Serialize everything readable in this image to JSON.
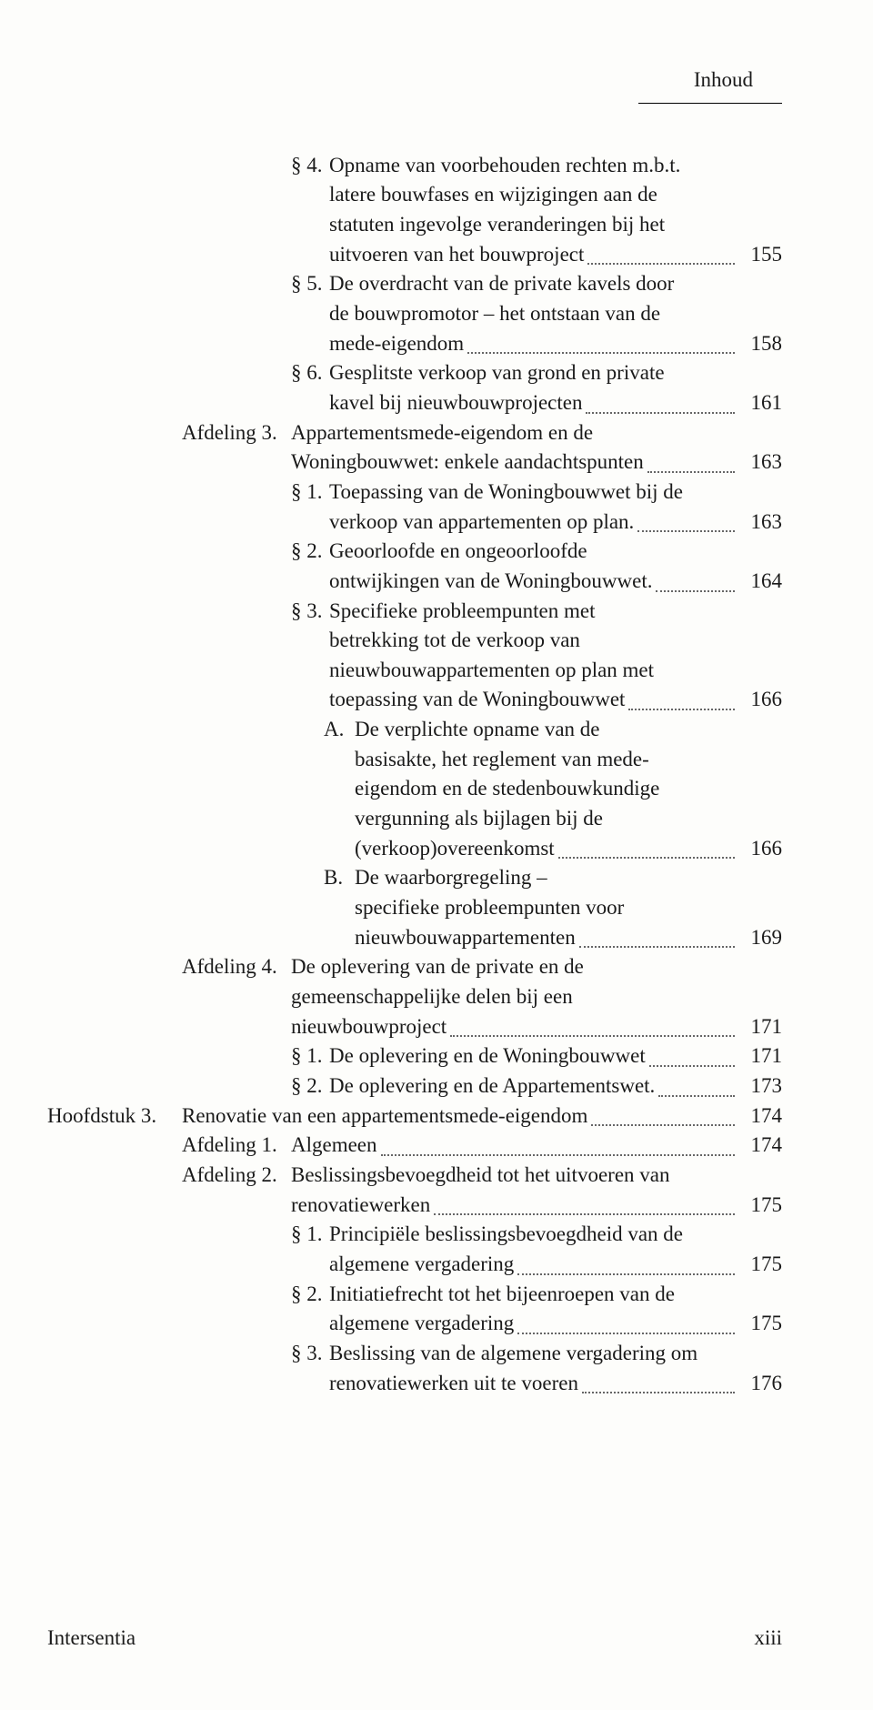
{
  "header": {
    "label": "Inhoud"
  },
  "footer": {
    "publisher": "Intersentia",
    "pagenum": "xiii"
  },
  "entries": [
    {
      "level": "para",
      "num": "§ 4.",
      "lines": [
        "Opname van voorbehouden rechten m.b.t.",
        "latere bouwfases en wijzigingen aan de",
        "statuten ingevolge veranderingen bij het",
        "uitvoeren van het bouwproject"
      ],
      "page": "155"
    },
    {
      "level": "para",
      "num": "§ 5.",
      "lines": [
        "De overdracht van de private kavels door",
        "de bouwpromotor – het ontstaan van de",
        "mede-eigendom"
      ],
      "page": "158"
    },
    {
      "level": "para",
      "num": "§ 6.",
      "lines": [
        "Gesplitste verkoop van grond en private",
        "kavel bij nieuwbouwprojecten"
      ],
      "page": "161"
    },
    {
      "level": "afd",
      "num": "Afdeling 3.",
      "lines": [
        "Appartementsmede-eigendom en de",
        "Woningbouwwet: enkele aandachtspunten"
      ],
      "page": "163"
    },
    {
      "level": "para",
      "num": "§ 1.",
      "lines": [
        "Toepassing van de Woningbouwwet bij de",
        "verkoop van appartementen op plan."
      ],
      "page": "163"
    },
    {
      "level": "para",
      "num": "§ 2.",
      "lines": [
        "Geoorloofde en ongeoorloofde",
        "ontwijkingen van de Woningbouwwet."
      ],
      "page": "164"
    },
    {
      "level": "para",
      "num": "§ 3.",
      "lines": [
        "Specifieke probleempunten met",
        "betrekking tot de verkoop van",
        "nieuwbouwappartementen op plan met",
        "toepassing van de Woningbouwwet"
      ],
      "page": "166"
    },
    {
      "level": "alpha",
      "num": "A.",
      "lines": [
        "De verplichte opname van de",
        "basisakte, het reglement van mede-",
        "eigendom en de stedenbouwkundige",
        "vergunning als bijlagen bij de",
        "(verkoop)overeenkomst"
      ],
      "page": "166"
    },
    {
      "level": "alpha",
      "num": "B.",
      "lines": [
        "De waarborgregeling –",
        "specifieke probleempunten voor",
        "nieuwbouwappartementen"
      ],
      "page": "169"
    },
    {
      "level": "afd",
      "num": "Afdeling 4.",
      "lines": [
        "De oplevering van de private en de",
        "gemeenschappelijke delen bij een",
        "nieuwbouwproject"
      ],
      "page": "171"
    },
    {
      "level": "para",
      "num": "§ 1.",
      "lines": [
        "De oplevering en de Woningbouwwet"
      ],
      "page": "171"
    },
    {
      "level": "para",
      "num": "§ 2.",
      "lines": [
        "De oplevering en de Appartementswet."
      ],
      "page": "173"
    },
    {
      "level": "hoofd",
      "num": "Hoofdstuk 3.",
      "lines": [
        "Renovatie van een appartementsmede-eigendom"
      ],
      "page": "174"
    },
    {
      "level": "afd",
      "num": "Afdeling 1.",
      "lines": [
        "Algemeen"
      ],
      "page": "174"
    },
    {
      "level": "afd",
      "num": "Afdeling 2.",
      "lines": [
        "Beslissingsbevoegdheid tot het uitvoeren van",
        "renovatiewerken"
      ],
      "page": "175"
    },
    {
      "level": "para",
      "num": "§ 1.",
      "lines": [
        "Principiële beslissingsbevoegdheid van de",
        "algemene vergadering"
      ],
      "page": "175"
    },
    {
      "level": "para",
      "num": "§ 2.",
      "lines": [
        "Initiatiefrecht tot het bijeenroepen van de",
        "algemene vergadering"
      ],
      "page": "175"
    },
    {
      "level": "para",
      "num": "§ 3.",
      "lines": [
        "Beslissing van de algemene vergadering om",
        "renovatiewerken uit te voeren"
      ],
      "page": "176"
    }
  ]
}
